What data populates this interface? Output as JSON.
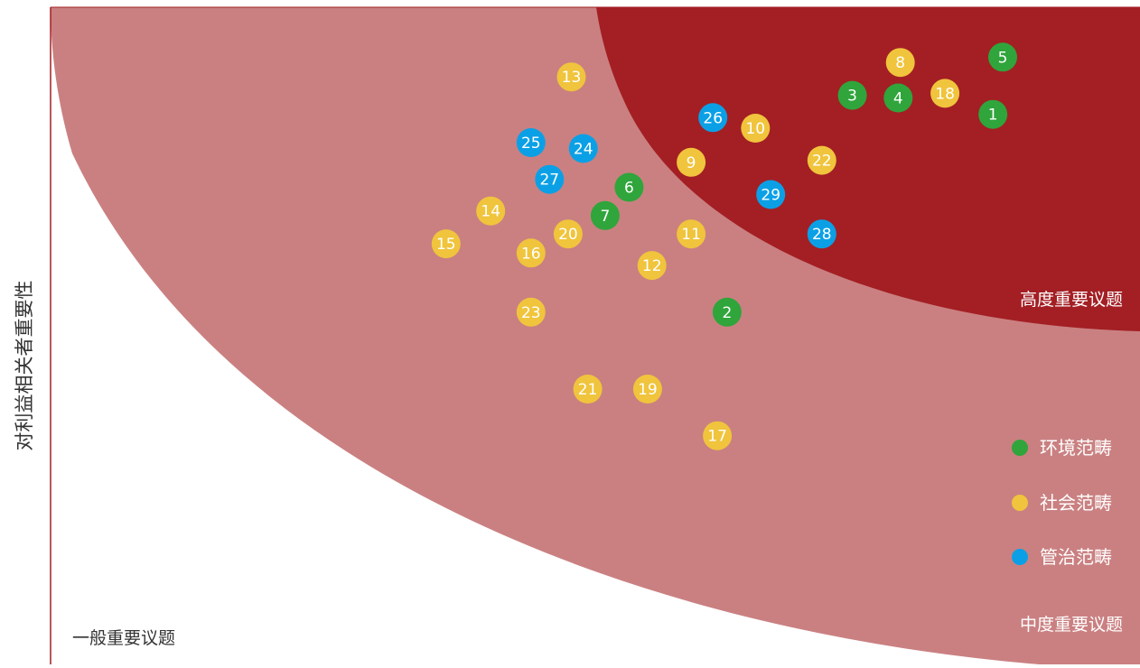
{
  "chart_data": {
    "type": "scatter",
    "title": "",
    "xlabel": "",
    "ylabel": "对利益相关者重要性",
    "xlim": [
      0,
      100
    ],
    "ylim": [
      0,
      100
    ],
    "grid": false,
    "legend_placement": "right",
    "zones": [
      {
        "name": "high",
        "label": "高度重要议题",
        "color": "#a31f24"
      },
      {
        "name": "medium",
        "label": "中度重要议题",
        "color": "#ca8081"
      },
      {
        "name": "general",
        "label": "一般重要议题",
        "color": "#ffffff"
      }
    ],
    "categories": [
      {
        "key": "env",
        "label": "环境范畴",
        "color": "#2fa53b"
      },
      {
        "key": "soc",
        "label": "社会范畴",
        "color": "#f0c43c"
      },
      {
        "key": "gov",
        "label": "管治范畴",
        "color": "#0ba0e6"
      }
    ],
    "points": [
      {
        "id": "1",
        "category": "env",
        "x": 86.5,
        "y": 83.7
      },
      {
        "id": "2",
        "category": "env",
        "x": 62.1,
        "y": 53.6
      },
      {
        "id": "3",
        "category": "env",
        "x": 73.6,
        "y": 86.6
      },
      {
        "id": "4",
        "category": "env",
        "x": 77.8,
        "y": 86.2
      },
      {
        "id": "5",
        "category": "env",
        "x": 87.4,
        "y": 92.4
      },
      {
        "id": "6",
        "category": "env",
        "x": 53.1,
        "y": 72.6
      },
      {
        "id": "7",
        "category": "env",
        "x": 50.9,
        "y": 68.3
      },
      {
        "id": "8",
        "category": "soc",
        "x": 78.0,
        "y": 91.6
      },
      {
        "id": "9",
        "category": "soc",
        "x": 58.8,
        "y": 76.4
      },
      {
        "id": "10",
        "category": "soc",
        "x": 64.7,
        "y": 81.6
      },
      {
        "id": "11",
        "category": "soc",
        "x": 58.8,
        "y": 65.5
      },
      {
        "id": "12",
        "category": "soc",
        "x": 55.2,
        "y": 60.7
      },
      {
        "id": "13",
        "category": "soc",
        "x": 47.8,
        "y": 89.4
      },
      {
        "id": "14",
        "category": "soc",
        "x": 40.4,
        "y": 69.0
      },
      {
        "id": "15",
        "category": "soc",
        "x": 36.3,
        "y": 64.0
      },
      {
        "id": "16",
        "category": "soc",
        "x": 44.1,
        "y": 62.6
      },
      {
        "id": "17",
        "category": "soc",
        "x": 61.2,
        "y": 34.8
      },
      {
        "id": "18",
        "category": "soc",
        "x": 82.1,
        "y": 86.9
      },
      {
        "id": "19",
        "category": "soc",
        "x": 54.8,
        "y": 41.9
      },
      {
        "id": "20",
        "category": "soc",
        "x": 47.5,
        "y": 65.5
      },
      {
        "id": "21",
        "category": "soc",
        "x": 49.3,
        "y": 41.9
      },
      {
        "id": "22",
        "category": "soc",
        "x": 70.8,
        "y": 76.7
      },
      {
        "id": "23",
        "category": "soc",
        "x": 44.1,
        "y": 53.6
      },
      {
        "id": "24",
        "category": "gov",
        "x": 48.9,
        "y": 78.5
      },
      {
        "id": "25",
        "category": "gov",
        "x": 44.1,
        "y": 79.4
      },
      {
        "id": "26",
        "category": "gov",
        "x": 60.8,
        "y": 83.2
      },
      {
        "id": "27",
        "category": "gov",
        "x": 45.8,
        "y": 73.8
      },
      {
        "id": "28",
        "category": "gov",
        "x": 70.8,
        "y": 65.5
      },
      {
        "id": "29",
        "category": "gov",
        "x": 66.1,
        "y": 71.5
      }
    ]
  }
}
